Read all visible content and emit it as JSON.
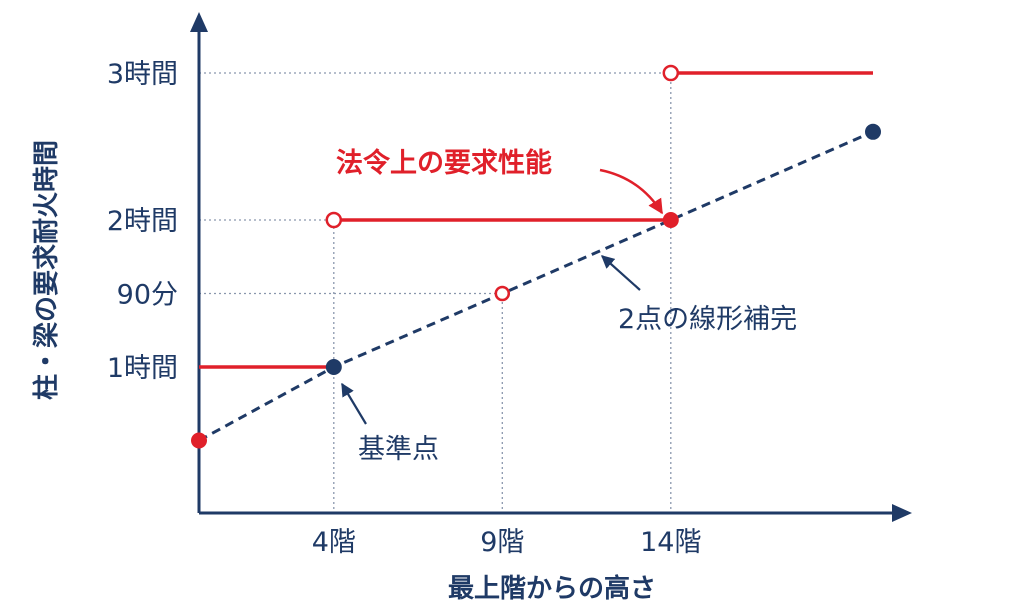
{
  "chart_data": {
    "type": "line",
    "xlabel": "最上階からの高さ",
    "ylabel": "柱・梁の要求耐火時間",
    "x_ticks": [
      "4階",
      "9階",
      "14階"
    ],
    "y_ticks": [
      "1時間",
      "90分",
      "2時間",
      "3時間"
    ],
    "xlim": [
      0,
      20
    ],
    "ylim": [
      0,
      3.3
    ],
    "step_series": [
      {
        "x_start": 0,
        "x_end": 4,
        "y": 1,
        "start_marker": "none",
        "end_marker": "filled"
      },
      {
        "x_start": 4,
        "x_end": 14,
        "y": 2,
        "start_marker": "open",
        "end_marker": "filled"
      },
      {
        "x_start": 14,
        "x_end": 20,
        "y": 3,
        "start_marker": "open",
        "end_marker": "none"
      }
    ],
    "interpolation_line": {
      "x": [
        0,
        4,
        9,
        14,
        20
      ],
      "y": [
        0.5,
        1.0,
        1.5,
        2.0,
        2.6
      ]
    },
    "points": [
      {
        "x": 0,
        "y": 0.5,
        "style": "red-filled"
      },
      {
        "x": 4,
        "y": 1.0,
        "style": "navy-filled"
      },
      {
        "x": 9,
        "y": 1.5,
        "style": "red-open"
      },
      {
        "x": 14,
        "y": 2.0,
        "style": "red-filled"
      },
      {
        "x": 20,
        "y": 2.6,
        "style": "navy-filled"
      }
    ],
    "annotations": [
      {
        "text": "法令上の要求性能",
        "color": "#e0202a"
      },
      {
        "text": "2点の線形補完",
        "color": "#1f3a66"
      },
      {
        "text": "基準点",
        "color": "#1f3a66"
      }
    ],
    "colors": {
      "red": "#e0202a",
      "navy": "#1f3a66",
      "guide": "#8a97ad"
    }
  }
}
